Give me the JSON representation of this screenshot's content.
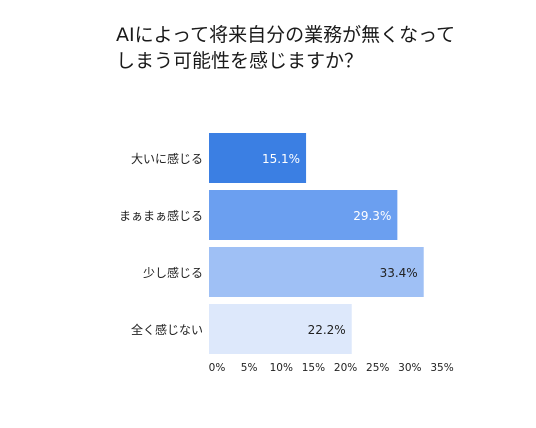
{
  "title_lines": [
    "AIによって将来自分の業務が無くなって",
    "しまう可能性を感じますか？"
  ],
  "chart_data": {
    "type": "bar",
    "orientation": "horizontal",
    "title": "AIによって将来自分の業務が無くなってしまう可能性を感じますか？",
    "categories": [
      "大いに感じる",
      "まぁまぁ感じる",
      "少し感じる",
      "全く感じない"
    ],
    "values": [
      15.1,
      29.3,
      33.4,
      22.2
    ],
    "value_labels": [
      "15.1%",
      "29.3%",
      "33.4%",
      "22.2%"
    ],
    "colors": [
      "#3b7fe3",
      "#6b9ff0",
      "#9fc0f5",
      "#dde8fb"
    ],
    "label_colors": [
      "#ffffff",
      "#ffffff",
      "#222222",
      "#222222"
    ],
    "xlim": [
      0,
      35
    ],
    "xticks": [
      0,
      5,
      10,
      15,
      20,
      25,
      30,
      35
    ],
    "xtick_labels": [
      "0%",
      "5%",
      "10%",
      "15%",
      "20%",
      "25%",
      "30%",
      "35%"
    ],
    "grid": false,
    "legend": "none"
  }
}
